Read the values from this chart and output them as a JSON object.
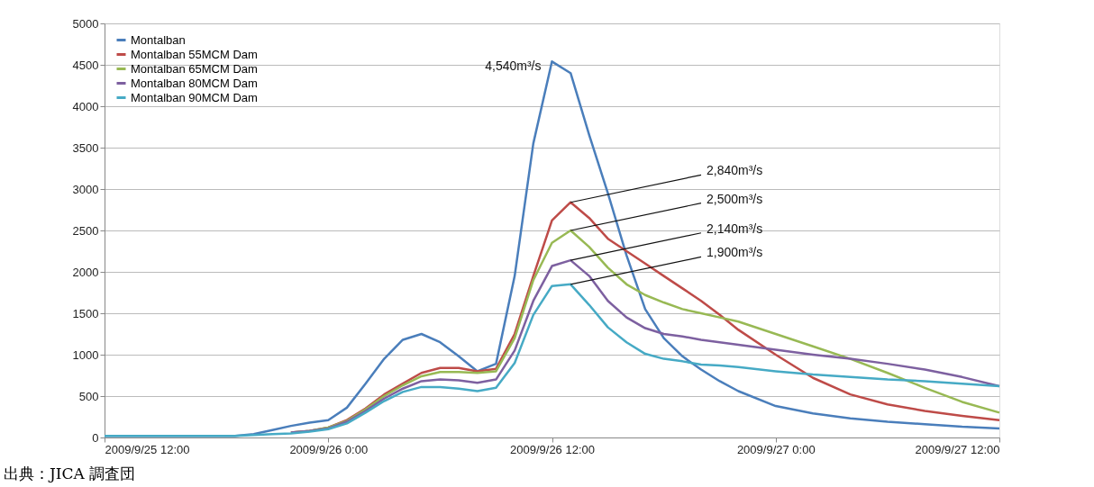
{
  "chart_data": {
    "type": "line",
    "x": [
      "2009-09-25T12:00",
      "2009-09-25T19:00",
      "2009-09-25T20:00",
      "2009-09-25T21:00",
      "2009-09-25T22:00",
      "2009-09-25T23:00",
      "2009-09-26T00:00",
      "2009-09-26T01:00",
      "2009-09-26T02:00",
      "2009-09-26T03:00",
      "2009-09-26T04:00",
      "2009-09-26T05:00",
      "2009-09-26T06:00",
      "2009-09-26T07:00",
      "2009-09-26T08:00",
      "2009-09-26T09:00",
      "2009-09-26T10:00",
      "2009-09-26T11:00",
      "2009-09-26T12:00",
      "2009-09-26T13:00",
      "2009-09-26T14:00",
      "2009-09-26T15:00",
      "2009-09-26T16:00",
      "2009-09-26T17:00",
      "2009-09-26T18:00",
      "2009-09-26T19:00",
      "2009-09-26T20:00",
      "2009-09-26T21:00",
      "2009-09-26T22:00",
      "2009-09-27T00:00",
      "2009-09-27T02:00",
      "2009-09-27T04:00",
      "2009-09-27T06:00",
      "2009-09-27T08:00",
      "2009-09-27T10:00",
      "2009-09-27T12:00"
    ],
    "series": [
      {
        "name": "Montalban",
        "color": "#4a7ebb",
        "values": [
          20,
          20,
          40,
          90,
          140,
          180,
          210,
          360,
          650,
          950,
          1180,
          1250,
          1150,
          980,
          800,
          890,
          1950,
          3550,
          4540,
          4400,
          3650,
          2950,
          2200,
          1550,
          1200,
          980,
          820,
          680,
          560,
          380,
          290,
          230,
          190,
          160,
          130,
          110
        ]
      },
      {
        "name": "Montalban 55MCM Dam",
        "color": "#be4b48",
        "values": [
          null,
          null,
          null,
          null,
          60,
          80,
          120,
          210,
          350,
          520,
          650,
          780,
          840,
          840,
          800,
          830,
          1250,
          1950,
          2620,
          2840,
          2650,
          2400,
          2250,
          2100,
          1950,
          1800,
          1650,
          1480,
          1300,
          1000,
          720,
          520,
          400,
          320,
          260,
          210
        ]
      },
      {
        "name": "Montalban 65MCM Dam",
        "color": "#98b954",
        "values": [
          null,
          null,
          null,
          null,
          60,
          80,
          120,
          200,
          340,
          500,
          630,
          740,
          790,
          790,
          780,
          800,
          1200,
          1900,
          2350,
          2500,
          2300,
          2050,
          1850,
          1720,
          1630,
          1550,
          1500,
          1450,
          1400,
          1250,
          1100,
          950,
          780,
          600,
          430,
          300
        ]
      },
      {
        "name": "Montalban 80MCM Dam",
        "color": "#7d60a0",
        "values": [
          null,
          null,
          null,
          null,
          60,
          80,
          110,
          190,
          320,
          470,
          590,
          680,
          700,
          690,
          660,
          700,
          1050,
          1650,
          2070,
          2140,
          1950,
          1650,
          1450,
          1320,
          1250,
          1220,
          1180,
          1150,
          1120,
          1060,
          1000,
          950,
          890,
          820,
          730,
          620
        ]
      },
      {
        "name": "Montalban 90MCM Dam",
        "color": "#46aac5",
        "values": [
          20,
          20,
          30,
          40,
          50,
          70,
          100,
          170,
          300,
          440,
          550,
          610,
          610,
          590,
          560,
          600,
          900,
          1480,
          1830,
          1850,
          1600,
          1330,
          1150,
          1010,
          950,
          920,
          880,
          870,
          850,
          800,
          760,
          730,
          700,
          680,
          650,
          620
        ]
      }
    ],
    "xlim": [
      "2009-09-25T12:00",
      "2009-09-27T12:00"
    ],
    "xticks": [
      {
        "value": "2009-09-25T12:00",
        "label": "2009/9/25 12:00"
      },
      {
        "value": "2009-09-26T00:00",
        "label": "2009/9/26 0:00"
      },
      {
        "value": "2009-09-26T12:00",
        "label": "2009/9/26 12:00"
      },
      {
        "value": "2009-09-27T00:00",
        "label": "2009/9/27 0:00"
      },
      {
        "value": "2009-09-27T12:00",
        "label": "2009/9/27 12:00"
      }
    ],
    "ylim": [
      0,
      5000
    ],
    "yticks": [
      0,
      500,
      1000,
      1500,
      2000,
      2500,
      3000,
      3500,
      4000,
      4500,
      5000
    ],
    "grid": "y",
    "legend": "top left",
    "marker": "none",
    "line_style": "solid",
    "annotations": [
      {
        "text": "4,540m³/s",
        "x": "2009-09-26T12:00",
        "y": 4540
      },
      {
        "text": "2,840m³/s",
        "x": "2009-09-26T13:00",
        "y": 2840
      },
      {
        "text": "2,500m³/s",
        "x": "2009-09-26T13:00",
        "y": 2500
      },
      {
        "text": "2,140m³/s",
        "x": "2009-09-26T13:00",
        "y": 2140
      },
      {
        "text": "1,900m³/s",
        "x": "2009-09-26T13:00",
        "y": 1850
      },
      "出典：JICA 調査団"
    ]
  }
}
